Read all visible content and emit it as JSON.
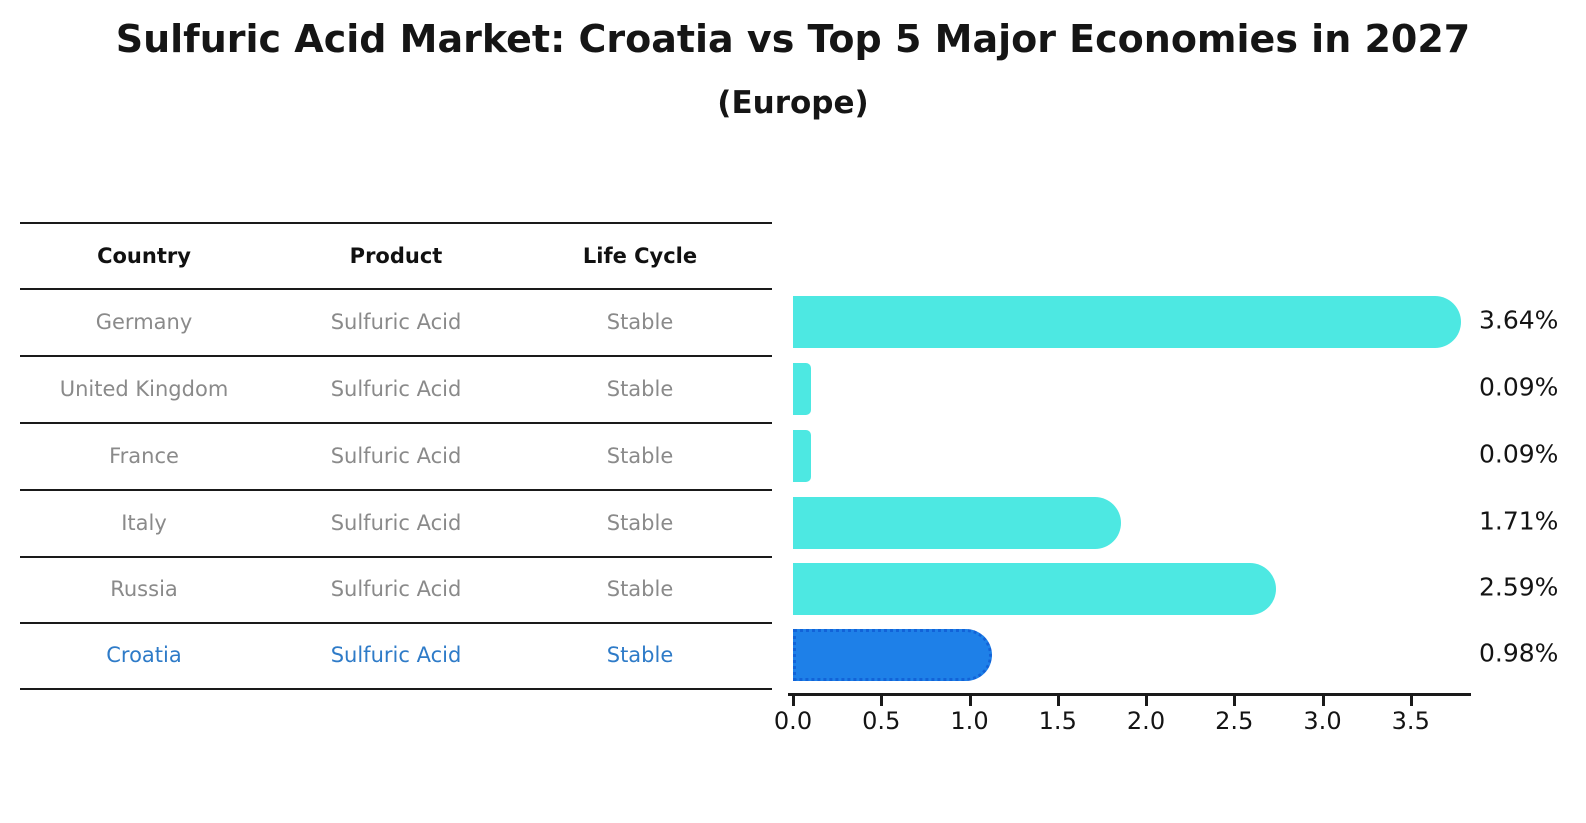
{
  "title": "Sulfuric Acid Market: Croatia vs Top 5 Major Economies in 2027",
  "subtitle": "(Europe)",
  "table": {
    "headers": [
      "Country",
      "Product",
      "Life Cycle"
    ],
    "rows": [
      {
        "country": "Germany",
        "product": "Sulfuric Acid",
        "life_cycle": "Stable",
        "highlight": false
      },
      {
        "country": "United Kingdom",
        "product": "Sulfuric Acid",
        "life_cycle": "Stable",
        "highlight": false
      },
      {
        "country": "France",
        "product": "Sulfuric Acid",
        "life_cycle": "Stable",
        "highlight": false
      },
      {
        "country": "Italy",
        "product": "Sulfuric Acid",
        "life_cycle": "Stable",
        "highlight": false
      },
      {
        "country": "Russia",
        "product": "Sulfuric Acid",
        "life_cycle": "Stable",
        "highlight": false
      },
      {
        "country": "Croatia",
        "product": "Sulfuric Acid",
        "life_cycle": "Stable",
        "highlight": true
      }
    ]
  },
  "chart_data": {
    "type": "bar",
    "orientation": "horizontal",
    "categories": [
      "Germany",
      "United Kingdom",
      "France",
      "Italy",
      "Russia",
      "Croatia"
    ],
    "values": [
      3.64,
      0.09,
      0.09,
      1.71,
      2.59,
      0.98
    ],
    "value_labels": [
      "3.64%",
      "0.09%",
      "0.09%",
      "1.71%",
      "2.59%",
      "0.98%"
    ],
    "x_tick_labels": [
      "0.0",
      "0.5",
      "1.0",
      "1.5",
      "2.0",
      "2.5",
      "3.0",
      "3.5"
    ],
    "x_tick_values": [
      0.0,
      0.5,
      1.0,
      1.5,
      2.0,
      2.5,
      3.0,
      3.5
    ],
    "xlim": [
      0,
      3.8
    ],
    "grid": false,
    "legend": "none",
    "bar_color": "#4de8e2",
    "highlight_color": "#1e80e8",
    "highlight_index": 5,
    "highlight_text_color": "#2e7bc8",
    "axis_color": "#1a1a1a",
    "row_text_color": "#8a8a8a"
  }
}
